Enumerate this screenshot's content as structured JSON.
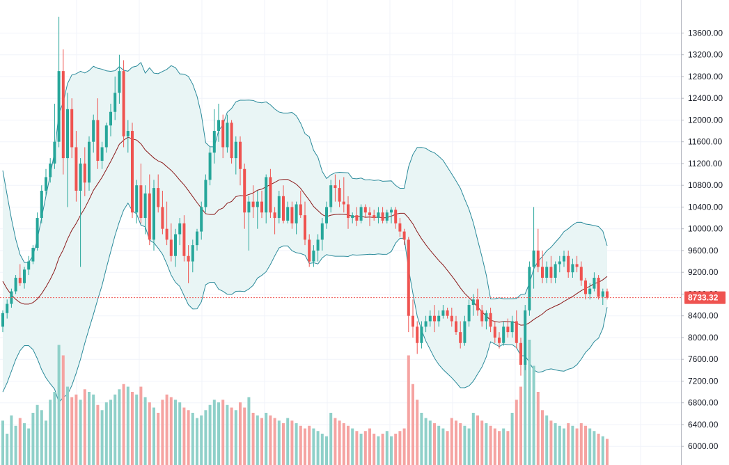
{
  "chart_data": {
    "type": "candlestick",
    "title": "",
    "ylim": [
      5900,
      13900
    ],
    "y_ticks": [
      6000,
      6400,
      6800,
      7200,
      7600,
      8000,
      8400,
      8800,
      9200,
      9600,
      10000,
      10400,
      10800,
      11200,
      11600,
      12000,
      12400,
      12800,
      13200,
      13600
    ],
    "y_tick_labels": [
      "6000.00",
      "6400.00",
      "6800.00",
      "7200.00",
      "7600.00",
      "8000.00",
      "8400.00",
      "8800.00",
      "9200.00",
      "9600.00",
      "10000.00",
      "10400.00",
      "10800.00",
      "11200.00",
      "11600.00",
      "12000.00",
      "12400.00",
      "12800.00",
      "13200.00",
      "13600.00"
    ],
    "last_price": 8733.32,
    "last_price_label": "8733.32",
    "colors": {
      "up": "#26a69a",
      "down": "#ef5350",
      "up_volume": "#8fd0c9",
      "down_volume": "#f5a3a1",
      "band_line": "#2a8a9a",
      "band_fill": "#e9f5f5",
      "basis": "#8b1a1a",
      "grid": "#f0f3fa",
      "price_tag": "#ef5350"
    },
    "indicators": {
      "bollinger": {
        "period": 20,
        "multiplier": 2
      }
    },
    "seed_closes": [
      11800,
      11400,
      11100,
      10700,
      10200,
      9800,
      9400,
      9100,
      8900,
      8700,
      8500,
      8400,
      8350,
      8300,
      8280,
      8260,
      8240,
      8220,
      8200,
      8200
    ],
    "candles": [
      [
        8200,
        8500,
        8100,
        8450,
        170
      ],
      [
        8450,
        8700,
        8350,
        8620,
        120
      ],
      [
        8620,
        8900,
        8550,
        8850,
        190
      ],
      [
        8850,
        9150,
        8800,
        9100,
        150
      ],
      [
        9100,
        9350,
        8950,
        9000,
        180
      ],
      [
        9000,
        9300,
        8900,
        9250,
        160
      ],
      [
        9250,
        9500,
        9150,
        9400,
        140
      ],
      [
        9400,
        9700,
        9350,
        9650,
        200
      ],
      [
        9650,
        10300,
        9600,
        10200,
        230
      ],
      [
        10200,
        10800,
        10100,
        10700,
        210
      ],
      [
        10700,
        11100,
        10600,
        10950,
        170
      ],
      [
        10950,
        11300,
        10850,
        11200,
        250
      ],
      [
        11200,
        12300,
        11100,
        11600,
        280
      ],
      [
        11600,
        13900,
        11500,
        12900,
        460
      ],
      [
        12900,
        13300,
        11000,
        11300,
        420
      ],
      [
        11300,
        12500,
        10400,
        12200,
        300
      ],
      [
        12200,
        12400,
        11300,
        11500,
        260
      ],
      [
        11500,
        11800,
        10500,
        10700,
        270
      ],
      [
        10700,
        11300,
        9300,
        11200,
        250
      ],
      [
        11200,
        11500,
        10600,
        10850,
        290
      ],
      [
        10850,
        11700,
        10700,
        11600,
        280
      ],
      [
        11600,
        12100,
        11400,
        12000,
        270
      ],
      [
        12000,
        12400,
        11100,
        11250,
        230
      ],
      [
        11250,
        11600,
        11100,
        11500,
        210
      ],
      [
        11500,
        11950,
        11400,
        11900,
        240
      ],
      [
        11900,
        12300,
        11700,
        12150,
        250
      ],
      [
        12150,
        12800,
        12000,
        12500,
        270
      ],
      [
        12500,
        13200,
        12300,
        12900,
        290
      ],
      [
        12900,
        13100,
        11500,
        11700,
        310
      ],
      [
        11700,
        12000,
        11400,
        11800,
        300
      ],
      [
        11800,
        11950,
        10200,
        10300,
        280
      ],
      [
        10300,
        10900,
        10100,
        10800,
        270
      ],
      [
        10800,
        11200,
        10100,
        10200,
        300
      ],
      [
        10200,
        10800,
        9900,
        10650,
        260
      ],
      [
        10650,
        11000,
        9700,
        9800,
        240
      ],
      [
        9800,
        10900,
        9600,
        10750,
        220
      ],
      [
        10750,
        11000,
        10300,
        10400,
        200
      ],
      [
        10400,
        10700,
        9900,
        10000,
        250
      ],
      [
        10000,
        10500,
        9700,
        9800,
        270
      ],
      [
        9800,
        10100,
        9400,
        9500,
        260
      ],
      [
        9500,
        10000,
        9300,
        9900,
        250
      ],
      [
        9900,
        10200,
        9700,
        10100,
        240
      ],
      [
        10100,
        10250,
        9400,
        9500,
        220
      ],
      [
        9500,
        9700,
        9000,
        9400,
        210
      ],
      [
        9400,
        9800,
        9200,
        9700,
        200
      ],
      [
        9700,
        10000,
        9600,
        9950,
        180
      ],
      [
        9950,
        10500,
        9800,
        10400,
        190
      ],
      [
        10400,
        11000,
        10300,
        10900,
        210
      ],
      [
        10900,
        11500,
        10800,
        11400,
        230
      ],
      [
        11400,
        12200,
        11200,
        11800,
        250
      ],
      [
        11800,
        12300,
        11600,
        12000,
        240
      ],
      [
        12000,
        12100,
        11300,
        11500,
        250
      ],
      [
        11500,
        12100,
        11400,
        11950,
        230
      ],
      [
        11950,
        12000,
        11200,
        11300,
        220
      ],
      [
        11300,
        11700,
        11000,
        11600,
        210
      ],
      [
        11600,
        11700,
        10800,
        11100,
        240
      ],
      [
        11100,
        11200,
        10000,
        10300,
        220
      ],
      [
        10300,
        10600,
        9600,
        10500,
        260
      ],
      [
        10500,
        10800,
        10200,
        10400,
        200
      ],
      [
        10400,
        10700,
        10000,
        10500,
        190
      ],
      [
        10500,
        10700,
        10200,
        10300,
        180
      ],
      [
        10300,
        11000,
        10100,
        10950,
        200
      ],
      [
        10950,
        11100,
        10200,
        10300,
        190
      ],
      [
        10300,
        10400,
        9900,
        10200,
        180
      ],
      [
        10200,
        10700,
        10100,
        10600,
        170
      ],
      [
        10600,
        10800,
        10100,
        10150,
        160
      ],
      [
        10150,
        10500,
        10100,
        10400,
        180
      ],
      [
        10400,
        10500,
        10000,
        10100,
        170
      ],
      [
        10100,
        10500,
        9900,
        10450,
        160
      ],
      [
        10450,
        10700,
        10200,
        10250,
        150
      ],
      [
        10250,
        10500,
        9700,
        9800,
        140
      ],
      [
        9800,
        9900,
        9300,
        9400,
        150
      ],
      [
        9400,
        9700,
        9300,
        9600,
        140
      ],
      [
        9600,
        9900,
        9400,
        9800,
        130
      ],
      [
        9800,
        10200,
        9600,
        10100,
        120
      ],
      [
        10100,
        10500,
        10000,
        10400,
        110
      ],
      [
        10400,
        10900,
        10300,
        10800,
        200
      ],
      [
        10800,
        11000,
        10500,
        10750,
        180
      ],
      [
        10750,
        10900,
        10400,
        10500,
        170
      ],
      [
        10500,
        10950,
        10300,
        10450,
        160
      ],
      [
        10450,
        10600,
        10000,
        10200,
        150
      ],
      [
        10200,
        10300,
        10100,
        10250,
        140
      ],
      [
        10250,
        10400,
        10050,
        10150,
        130
      ],
      [
        10150,
        10450,
        10100,
        10400,
        120
      ],
      [
        10400,
        10450,
        10200,
        10300,
        130
      ],
      [
        10300,
        10400,
        10050,
        10250,
        140
      ],
      [
        10250,
        10350,
        10150,
        10200,
        120
      ],
      [
        10200,
        10400,
        10100,
        10300,
        110
      ],
      [
        10300,
        10400,
        10100,
        10150,
        120
      ],
      [
        10150,
        10350,
        10100,
        10300,
        130
      ],
      [
        10300,
        10400,
        10100,
        10350,
        110
      ],
      [
        10350,
        10400,
        10000,
        10100,
        120
      ],
      [
        10100,
        10200,
        9850,
        9950,
        130
      ],
      [
        9950,
        10000,
        9700,
        9800,
        140
      ],
      [
        9800,
        9850,
        8100,
        8400,
        420
      ],
      [
        8400,
        8700,
        8000,
        8200,
        310
      ],
      [
        8200,
        8300,
        7700,
        7900,
        250
      ],
      [
        7900,
        8300,
        7800,
        8200,
        200
      ],
      [
        8200,
        8400,
        8100,
        8300,
        180
      ],
      [
        8300,
        8500,
        8200,
        8400,
        170
      ],
      [
        8400,
        8600,
        8100,
        8300,
        160
      ],
      [
        8300,
        8500,
        8200,
        8400,
        150
      ],
      [
        8400,
        8600,
        8350,
        8500,
        140
      ],
      [
        8500,
        8550,
        8350,
        8400,
        130
      ],
      [
        8400,
        8550,
        8200,
        8300,
        180
      ],
      [
        8300,
        8400,
        8050,
        8100,
        170
      ],
      [
        8100,
        8300,
        7800,
        7900,
        160
      ],
      [
        7900,
        8400,
        7850,
        8300,
        150
      ],
      [
        8300,
        8700,
        8200,
        8600,
        140
      ],
      [
        8600,
        8800,
        8400,
        8700,
        200
      ],
      [
        8700,
        8900,
        8400,
        8500,
        190
      ],
      [
        8500,
        8600,
        8200,
        8300,
        170
      ],
      [
        8300,
        8500,
        8150,
        8450,
        160
      ],
      [
        8450,
        8550,
        8100,
        8200,
        150
      ],
      [
        8200,
        8300,
        7900,
        8000,
        140
      ],
      [
        8000,
        8100,
        7800,
        7900,
        130
      ],
      [
        7900,
        8300,
        7850,
        8200,
        140
      ],
      [
        8200,
        8350,
        8000,
        8100,
        130
      ],
      [
        8100,
        8400,
        8000,
        8300,
        200
      ],
      [
        8300,
        8500,
        7800,
        7900,
        250
      ],
      [
        7900,
        8000,
        7300,
        7500,
        300
      ],
      [
        7500,
        8600,
        7400,
        8500,
        400
      ],
      [
        8500,
        9400,
        8400,
        9300,
        480
      ],
      [
        9300,
        10400,
        8900,
        9600,
        380
      ],
      [
        9600,
        10000,
        9200,
        9300,
        280
      ],
      [
        9300,
        9600,
        9000,
        9100,
        210
      ],
      [
        9100,
        9400,
        9000,
        9300,
        190
      ],
      [
        9300,
        9500,
        9000,
        9100,
        170
      ],
      [
        9100,
        9400,
        9000,
        9350,
        160
      ],
      [
        9350,
        9500,
        9200,
        9400,
        150
      ],
      [
        9400,
        9600,
        9300,
        9500,
        140
      ],
      [
        9500,
        9600,
        9100,
        9200,
        160
      ],
      [
        9200,
        9450,
        9100,
        9350,
        150
      ],
      [
        9350,
        9500,
        9200,
        9300,
        140
      ],
      [
        9300,
        9400,
        8950,
        9050,
        160
      ],
      [
        9050,
        9100,
        8700,
        8800,
        150
      ],
      [
        8800,
        9000,
        8700,
        8900,
        140
      ],
      [
        8900,
        9200,
        8850,
        9100,
        130
      ],
      [
        9100,
        9150,
        8700,
        8750,
        120
      ],
      [
        8750,
        8900,
        8600,
        8850,
        110
      ],
      [
        8850,
        8900,
        8700,
        8733,
        100
      ]
    ]
  }
}
